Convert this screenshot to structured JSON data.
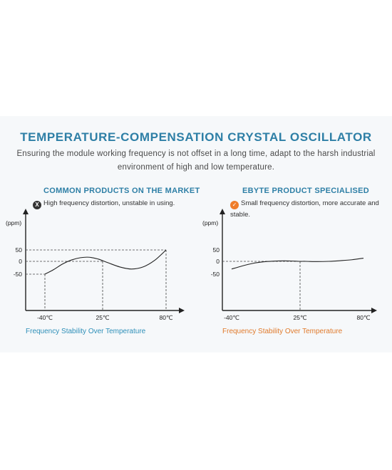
{
  "header": {
    "title": "TEMPERATURE-COMPENSATION CRYSTAL OSCILLATOR",
    "subtitle": "Ensuring the module working frequency is not offset in a long time, adapt to the harsh industrial environment of high and low temperature."
  },
  "left_panel": {
    "heading": "COMMON PRODUCTS ON THE MARKET",
    "badge_icon": "x-icon",
    "badge_glyph": "X",
    "note": "High frequency distortion, unstable in using.",
    "caption": "Frequency Stability Over Temperature",
    "caption_color": "#2e8fb8"
  },
  "right_panel": {
    "heading": "EBYTE PRODUCT SPECIALISED",
    "badge_icon": "check-icon",
    "badge_glyph": "✓",
    "note": "Small frequency distortion, more accurate and stable.",
    "caption": "Frequency Stability Over Temperature",
    "caption_color": "#e07a2c"
  },
  "chart_data": [
    {
      "type": "line",
      "ylabel": "(ppm)",
      "x_ticks": [
        "-40℃",
        "25℃",
        "80℃"
      ],
      "x_tick_values": [
        -40,
        25,
        80
      ],
      "y_ticks": [
        "50",
        "0",
        "-50"
      ],
      "y_tick_values": [
        50,
        0,
        -50
      ],
      "xlim": [
        -40,
        80
      ],
      "series": [
        {
          "x": [
            -40,
            -30,
            -20,
            -10,
            0,
            10,
            20,
            25,
            30,
            40,
            50,
            60,
            70,
            80
          ],
          "y": [
            -50,
            -32,
            -10,
            6,
            16,
            18,
            10,
            3,
            -6,
            -22,
            -30,
            -22,
            4,
            50
          ]
        }
      ],
      "reference_points": [
        {
          "x": -40,
          "y": -50
        },
        {
          "x": 25,
          "y": 0
        },
        {
          "x": 80,
          "y": 50
        }
      ]
    },
    {
      "type": "line",
      "ylabel": "(ppm)",
      "x_ticks": [
        "-40℃",
        "25℃",
        "80℃"
      ],
      "x_tick_values": [
        -40,
        25,
        80
      ],
      "y_ticks": [
        "50",
        "0",
        "-50"
      ],
      "y_tick_values": [
        50,
        0,
        -50
      ],
      "xlim": [
        -40,
        80
      ],
      "series": [
        {
          "x": [
            -40,
            -30,
            -20,
            -10,
            0,
            10,
            20,
            25,
            30,
            40,
            50,
            60,
            70,
            80
          ],
          "y": [
            -30,
            -18,
            -8,
            -2,
            1,
            2,
            1,
            0,
            0,
            -1,
            0,
            3,
            7,
            14
          ]
        }
      ],
      "reference_points": [
        {
          "x": 25,
          "y": 0
        }
      ]
    }
  ]
}
